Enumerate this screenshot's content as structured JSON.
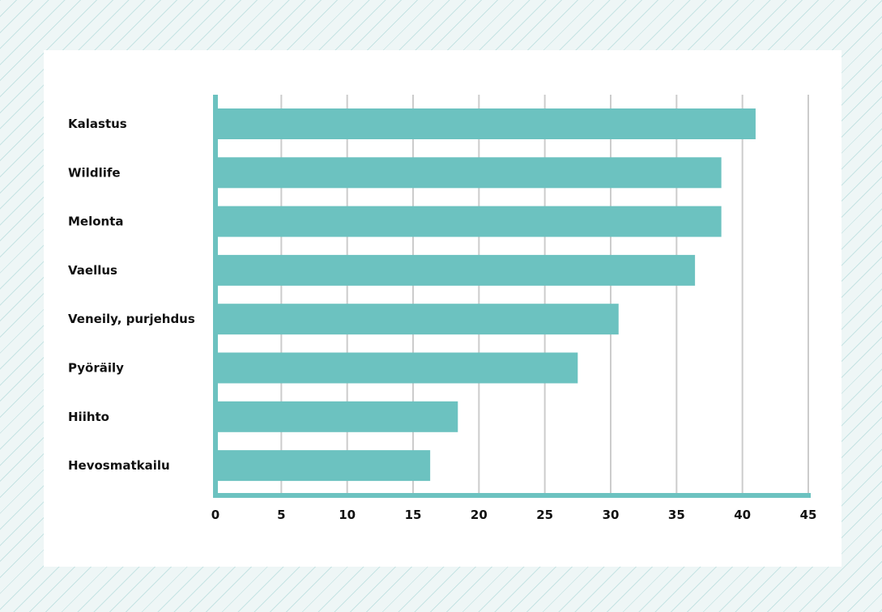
{
  "chart_data": {
    "type": "bar",
    "orientation": "horizontal",
    "categories": [
      "Kalastus",
      "Wildlife",
      "Melonta",
      "Vaellus",
      "Veneily, purjehdus",
      "Pyöräily",
      "Hiihto",
      "Hevosmatkailu"
    ],
    "values": [
      41,
      38.4,
      38.4,
      36.4,
      30.6,
      27.5,
      18.4,
      16.3
    ],
    "xlim": [
      0,
      45
    ],
    "xticks": [
      "0",
      "5",
      "10",
      "15",
      "20",
      "25",
      "30",
      "35",
      "40",
      "45"
    ],
    "title": "",
    "xlabel": "",
    "ylabel": "",
    "grid": "vertical",
    "legend": "none",
    "colors": {
      "bar": "#6cc2c0",
      "axis": "#6cc2c0",
      "grid": "#cccccc"
    }
  }
}
